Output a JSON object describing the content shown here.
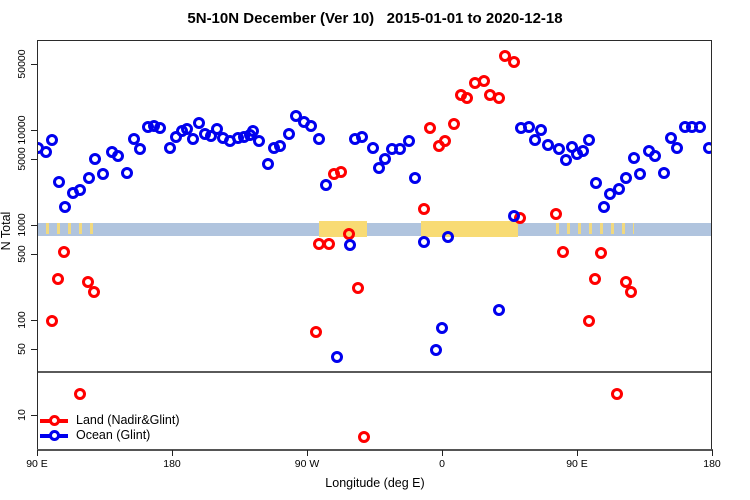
{
  "title": "5N-10N December (Ver 10)   2015-01-01 to 2020-12-18",
  "colors": {
    "land": "#FF0000",
    "ocean": "#0000EE",
    "band": "#B0C4DE",
    "land_fraction": "#F8DB74",
    "axis": "#222222",
    "reference_line": "#5a5a5a"
  },
  "chart_data": {
    "type": "scatter",
    "title": "5N-10N December (Ver 10)   2015-01-01 to 2020-12-18",
    "xlabel": "Longitude (deg E)",
    "ylabel": "N Total",
    "y_scale": "log10",
    "ylim": [
      5,
      90000
    ],
    "x_axis_span_deg": [
      0,
      450
    ],
    "x_ticks": [
      {
        "deg": 0,
        "label": "90 E"
      },
      {
        "deg": 90,
        "label": "180"
      },
      {
        "deg": 180,
        "label": "90 W"
      },
      {
        "deg": 270,
        "label": "0"
      },
      {
        "deg": 360,
        "label": "90 E"
      },
      {
        "deg": 450,
        "label": "180"
      }
    ],
    "y_ticks": [
      10,
      50,
      100,
      500,
      1000,
      5000,
      10000,
      50000
    ],
    "grid": false,
    "reference_line_y": 30,
    "band": {
      "y_range": [
        790,
        1080
      ]
    },
    "land_fraction_segments": [
      {
        "deg_range": [
          5,
          39
        ],
        "style": "speckle"
      },
      {
        "deg_range": [
          187,
          219
        ],
        "style": "solid"
      },
      {
        "deg_range": [
          255,
          320
        ],
        "style": "solid"
      },
      {
        "deg_range": [
          345,
          397
        ],
        "style": "speckle"
      }
    ],
    "legend": [
      {
        "label": "Land (Nadir&Glint)",
        "color_key": "land"
      },
      {
        "label": "Ocean (Glint)",
        "color_key": "ocean"
      }
    ],
    "legend_position": "bottom-left",
    "series": [
      {
        "name": "Land (Nadir&Glint)",
        "color_key": "land",
        "points": [
          [
            9,
            100
          ],
          [
            13,
            280
          ],
          [
            17,
            530
          ],
          [
            28,
            17
          ],
          [
            33,
            260
          ],
          [
            37,
            200
          ],
          [
            185,
            77
          ],
          [
            187,
            650
          ],
          [
            194,
            650
          ],
          [
            197,
            3500
          ],
          [
            202,
            3700
          ],
          [
            207,
            820
          ],
          [
            213,
            220
          ],
          [
            217,
            6
          ],
          [
            257,
            1500
          ],
          [
            261,
            10700
          ],
          [
            267,
            7000
          ],
          [
            271,
            7800
          ],
          [
            277,
            11800
          ],
          [
            282,
            24000
          ],
          [
            286,
            22000
          ],
          [
            291,
            32000
          ],
          [
            297,
            33500
          ],
          [
            301,
            24000
          ],
          [
            307,
            22000
          ],
          [
            311,
            62000
          ],
          [
            317,
            53000
          ],
          [
            321,
            1200
          ],
          [
            345,
            1340
          ],
          [
            350,
            530
          ],
          [
            367,
            100
          ],
          [
            371,
            280
          ],
          [
            375,
            520
          ],
          [
            386,
            17
          ],
          [
            392,
            260
          ],
          [
            395,
            200
          ]
        ]
      },
      {
        "name": "Ocean (Glint)",
        "color_key": "ocean",
        "points": [
          [
            0,
            6600
          ],
          [
            5,
            6000
          ],
          [
            9,
            8000
          ],
          [
            14,
            2900
          ],
          [
            18,
            1600
          ],
          [
            23,
            2200
          ],
          [
            28,
            2400
          ],
          [
            34,
            3200
          ],
          [
            38,
            5100
          ],
          [
            43,
            3500
          ],
          [
            49,
            6000
          ],
          [
            53,
            5400
          ],
          [
            59,
            3600
          ],
          [
            64,
            8200
          ],
          [
            68,
            6400
          ],
          [
            73,
            11000
          ],
          [
            77,
            11300
          ],
          [
            81,
            10700
          ],
          [
            88,
            6600
          ],
          [
            92,
            8600
          ],
          [
            96,
            10000
          ],
          [
            99,
            10500
          ],
          [
            103,
            8200
          ],
          [
            107,
            12100
          ],
          [
            111,
            9300
          ],
          [
            115,
            8800
          ],
          [
            119,
            10500
          ],
          [
            123,
            8400
          ],
          [
            128,
            7800
          ],
          [
            133,
            8400
          ],
          [
            137,
            8600
          ],
          [
            141,
            9100
          ],
          [
            143,
            10000
          ],
          [
            147,
            7800
          ],
          [
            153,
            4500
          ],
          [
            157,
            6600
          ],
          [
            161,
            7000
          ],
          [
            167,
            9300
          ],
          [
            172,
            14400
          ],
          [
            177,
            12400
          ],
          [
            182,
            11300
          ],
          [
            187,
            8200
          ],
          [
            192,
            2700
          ],
          [
            199,
            42
          ],
          [
            208,
            630
          ],
          [
            211,
            8200
          ],
          [
            216,
            8600
          ],
          [
            223,
            6600
          ],
          [
            227,
            4100
          ],
          [
            231,
            5100
          ],
          [
            236,
            6450
          ],
          [
            241,
            6450
          ],
          [
            247,
            7800
          ],
          [
            251,
            3200
          ],
          [
            257,
            680
          ],
          [
            265,
            50
          ],
          [
            269,
            85
          ],
          [
            273,
            770
          ],
          [
            307,
            130
          ],
          [
            317,
            1270
          ],
          [
            322,
            10700
          ],
          [
            327,
            11000
          ],
          [
            331,
            8000
          ],
          [
            335,
            10200
          ],
          [
            340,
            7100
          ],
          [
            347,
            6450
          ],
          [
            352,
            4950
          ],
          [
            356,
            6750
          ],
          [
            359,
            5700
          ],
          [
            363,
            6160
          ],
          [
            367,
            8000
          ],
          [
            372,
            2840
          ],
          [
            377,
            1580
          ],
          [
            381,
            2180
          ],
          [
            387,
            2450
          ],
          [
            392,
            3200
          ],
          [
            397,
            5200
          ],
          [
            401,
            3530
          ],
          [
            407,
            6160
          ],
          [
            411,
            5450
          ],
          [
            417,
            3620
          ],
          [
            422,
            8400
          ],
          [
            426,
            6600
          ],
          [
            431,
            11000
          ],
          [
            436,
            11000
          ],
          [
            441,
            11000
          ],
          [
            447,
            6600
          ]
        ]
      }
    ]
  }
}
